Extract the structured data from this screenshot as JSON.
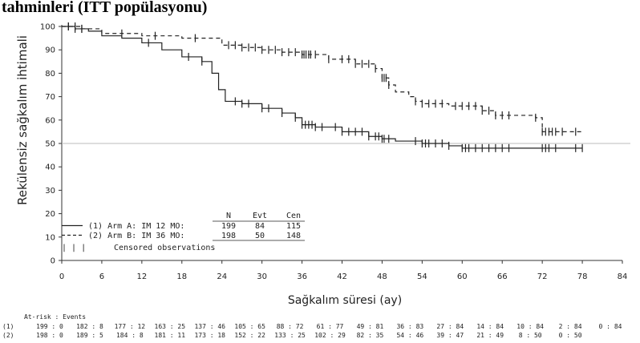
{
  "title": "tahminleri (ITT popülasyonu)",
  "chart_data": {
    "type": "line",
    "subtype": "kaplan-meier",
    "ylabel": "Rekülensiz sağkalım ihtimali",
    "xlabel": "Sağkalım süresi (ay)",
    "xlim": [
      0,
      84
    ],
    "ylim": [
      0,
      100
    ],
    "x_ticks": [
      0,
      6,
      12,
      18,
      24,
      30,
      36,
      42,
      48,
      54,
      60,
      66,
      72,
      78,
      84
    ],
    "y_ticks": [
      0,
      10,
      20,
      30,
      40,
      50,
      60,
      70,
      80,
      90,
      100
    ],
    "reference_line": 50,
    "series": [
      {
        "name": "Arm A: IM 12 MO",
        "legend_prefix": "(1)",
        "style": "solid",
        "steps": [
          [
            0,
            100
          ],
          [
            2,
            99
          ],
          [
            4,
            98
          ],
          [
            6,
            96
          ],
          [
            9,
            95
          ],
          [
            12,
            93
          ],
          [
            15,
            90
          ],
          [
            18,
            87
          ],
          [
            21,
            85
          ],
          [
            22.5,
            80
          ],
          [
            23.5,
            73
          ],
          [
            24.5,
            68
          ],
          [
            27,
            67
          ],
          [
            30,
            65
          ],
          [
            33,
            63
          ],
          [
            35,
            61
          ],
          [
            36,
            58
          ],
          [
            38,
            57
          ],
          [
            42,
            55
          ],
          [
            46,
            53
          ],
          [
            48,
            52
          ],
          [
            50,
            51
          ],
          [
            54,
            50
          ],
          [
            58,
            49
          ],
          [
            60,
            48
          ],
          [
            78,
            48
          ]
        ],
        "censor_x": [
          1,
          2,
          3,
          13,
          19,
          21,
          26,
          27,
          28,
          30,
          31,
          33,
          35,
          36,
          36.5,
          37,
          37.5,
          38,
          39,
          41,
          42,
          43,
          44,
          45,
          46,
          47,
          47.5,
          48,
          48.3,
          49,
          53,
          54,
          54.5,
          55,
          56,
          57,
          58,
          60,
          60.5,
          61,
          62,
          63,
          64,
          65,
          66,
          67,
          72,
          72.5,
          73,
          74,
          77,
          78
        ]
      },
      {
        "name": "Arm B: IM 36 MO",
        "legend_prefix": "(2)",
        "style": "dashed",
        "steps": [
          [
            0,
            100
          ],
          [
            3,
            99
          ],
          [
            6,
            97
          ],
          [
            12,
            96
          ],
          [
            18,
            95
          ],
          [
            24,
            92
          ],
          [
            27,
            91
          ],
          [
            30,
            90
          ],
          [
            33,
            89
          ],
          [
            36,
            88
          ],
          [
            40,
            86
          ],
          [
            44,
            84
          ],
          [
            47,
            82
          ],
          [
            48,
            78
          ],
          [
            49,
            75
          ],
          [
            50,
            72
          ],
          [
            52,
            70
          ],
          [
            53,
            68
          ],
          [
            54,
            67
          ],
          [
            58,
            66
          ],
          [
            63,
            64
          ],
          [
            65,
            62
          ],
          [
            71,
            61
          ],
          [
            72,
            55
          ],
          [
            78,
            55
          ]
        ],
        "censor_x": [
          1,
          2,
          3,
          9,
          14,
          20,
          25,
          26,
          27,
          28,
          29,
          30,
          31,
          32,
          33,
          34,
          35,
          36,
          36.3,
          36.6,
          37,
          37.3,
          38,
          40,
          42,
          43,
          44,
          45,
          46,
          47,
          48,
          48.3,
          48.6,
          49,
          53,
          54,
          55,
          56,
          57,
          59,
          60,
          61,
          62,
          63,
          64,
          65,
          66,
          67,
          71,
          72,
          72.5,
          73,
          73.5,
          74,
          75,
          77
        ]
      }
    ],
    "legend_table": {
      "headers": [
        "N",
        "Evt",
        "Cen"
      ],
      "rows": [
        {
          "line_label": "(1) Arm A: IM 12 MO:",
          "n": "199",
          "evt": "84",
          "cen": "115"
        },
        {
          "line_label": "(2) Arm B: IM 36 MO:",
          "n": "198",
          "evt": "50",
          "cen": "148"
        }
      ],
      "censor_label": "Censored observations",
      "censor_symbol": "| | |"
    },
    "at_risk": {
      "header": "At-risk : Events",
      "rows": [
        {
          "label": "(1)",
          "cells": [
            "199 : 0",
            "182 : 8",
            "177 : 12",
            "163 : 25",
            "137 : 46",
            "105 : 65",
            "88 : 72",
            "61 : 77",
            "49 : 81",
            "36 : 83",
            "27 : 84",
            "14 : 84",
            "10 : 84",
            "2 : 84",
            "0 : 84"
          ]
        },
        {
          "label": "(2)",
          "cells": [
            "198 : 0",
            "189 : 5",
            "184 : 8",
            "181 : 11",
            "173 : 18",
            "152 : 22",
            "133 : 25",
            "102 : 29",
            "82 : 35",
            "54 : 46",
            "39 : 47",
            "21 : 49",
            "8 : 50",
            "0 : 50"
          ]
        }
      ]
    }
  }
}
